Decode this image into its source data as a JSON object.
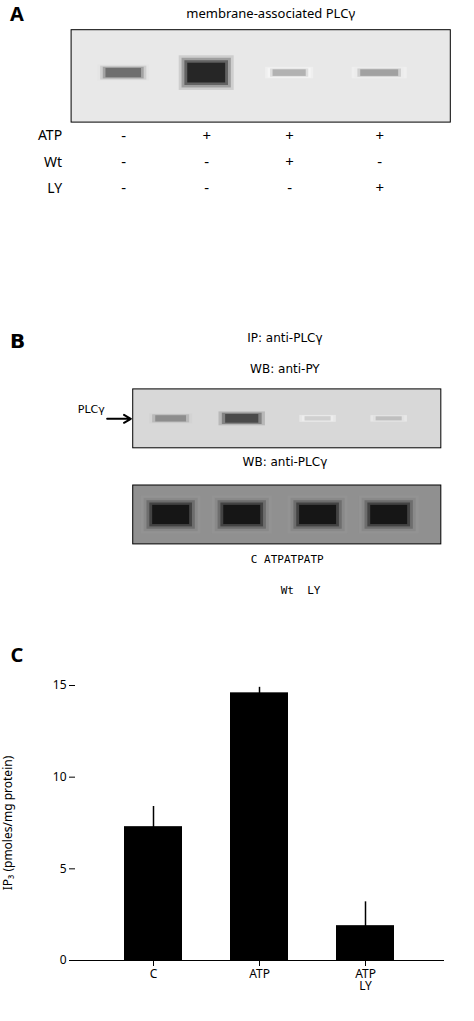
{
  "chart_data": [
    {
      "type": "gel",
      "title": "membrane-associated PLCγ",
      "annotations": [
        "A"
      ],
      "color": "#e8e8e8",
      "rows": [
        {
          "label": "ATP",
          "signs": [
            "-",
            "+",
            "+",
            "+"
          ]
        },
        {
          "label": "Wt",
          "signs": [
            "-",
            "-",
            "+",
            "-"
          ]
        },
        {
          "label": "LY",
          "signs": [
            "-",
            "-",
            "-",
            "+"
          ]
        }
      ]
    },
    {
      "type": "gel",
      "annotations": [
        "B",
        "IP: anti-PLCγ",
        "WB: anti-PY",
        "PLCγ",
        "WB: anti-PLCγ",
        "C ATPATPATP",
        "    Wt  LY"
      ],
      "colors": [
        "#d8d8d8",
        "#909090"
      ]
    },
    {
      "type": "bar",
      "annotations": [
        "C"
      ],
      "categories": [
        "C",
        "ATP",
        "ATP\nLY"
      ],
      "values": [
        7.3,
        14.6,
        1.9
      ],
      "errors": [
        1.1,
        0.3,
        1.3
      ],
      "ylabel": "IP₃ (pmoles/mg protein)",
      "ylim": [
        0,
        15
      ],
      "yticks": [
        0,
        5,
        10,
        15
      ]
    }
  ]
}
